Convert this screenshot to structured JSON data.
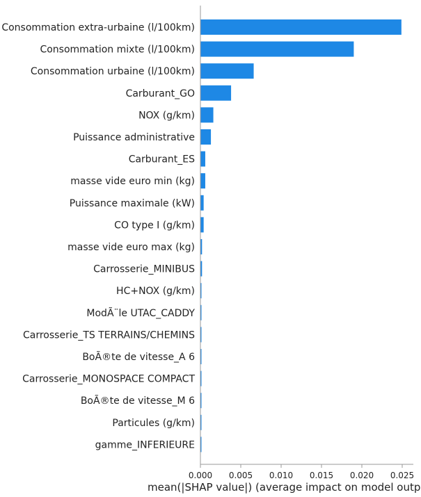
{
  "chart_data": {
    "type": "bar",
    "orientation": "horizontal",
    "title": "",
    "xlabel": "mean(|SHAP value|) (average impact on model output magnitude)",
    "ylabel": "",
    "xlim": [
      0,
      0.026
    ],
    "xticks": [
      "0.000",
      "0.005",
      "0.010",
      "0.015",
      "0.020",
      "0.025"
    ],
    "grid": false,
    "bar_color": "#1e88e5",
    "categories": [
      "Consommation extra-urbaine (l/100km)",
      "Consommation mixte (l/100km)",
      "Consommation urbaine (l/100km)",
      "Carburant_GO",
      "NOX (g/km)",
      "Puissance administrative",
      "Carburant_ES",
      "masse vide euro min (kg)",
      "Puissance maximale (kW)",
      "CO type I (g/km)",
      "masse vide euro max (kg)",
      "Carrosserie_MINIBUS",
      "HC+NOX (g/km)",
      "ModÃ¨le UTAC_CADDY",
      "Carrosserie_TS TERRAINS/CHEMINS",
      "BoÃ®te de vitesse_A 6",
      "Carrosserie_MONOSPACE COMPACT",
      "BoÃ®te de vitesse_M 6",
      "Particules (g/km)",
      "gamme_INFERIEURE"
    ],
    "values": [
      0.0249,
      0.019,
      0.0066,
      0.0038,
      0.0016,
      0.0013,
      0.0006,
      0.0006,
      0.0004,
      0.0004,
      0.0002,
      0.0002,
      0.0001,
      0.0001,
      0.0001,
      0.0001,
      0.0001,
      0.0001,
      0.0001,
      0.0001
    ]
  }
}
